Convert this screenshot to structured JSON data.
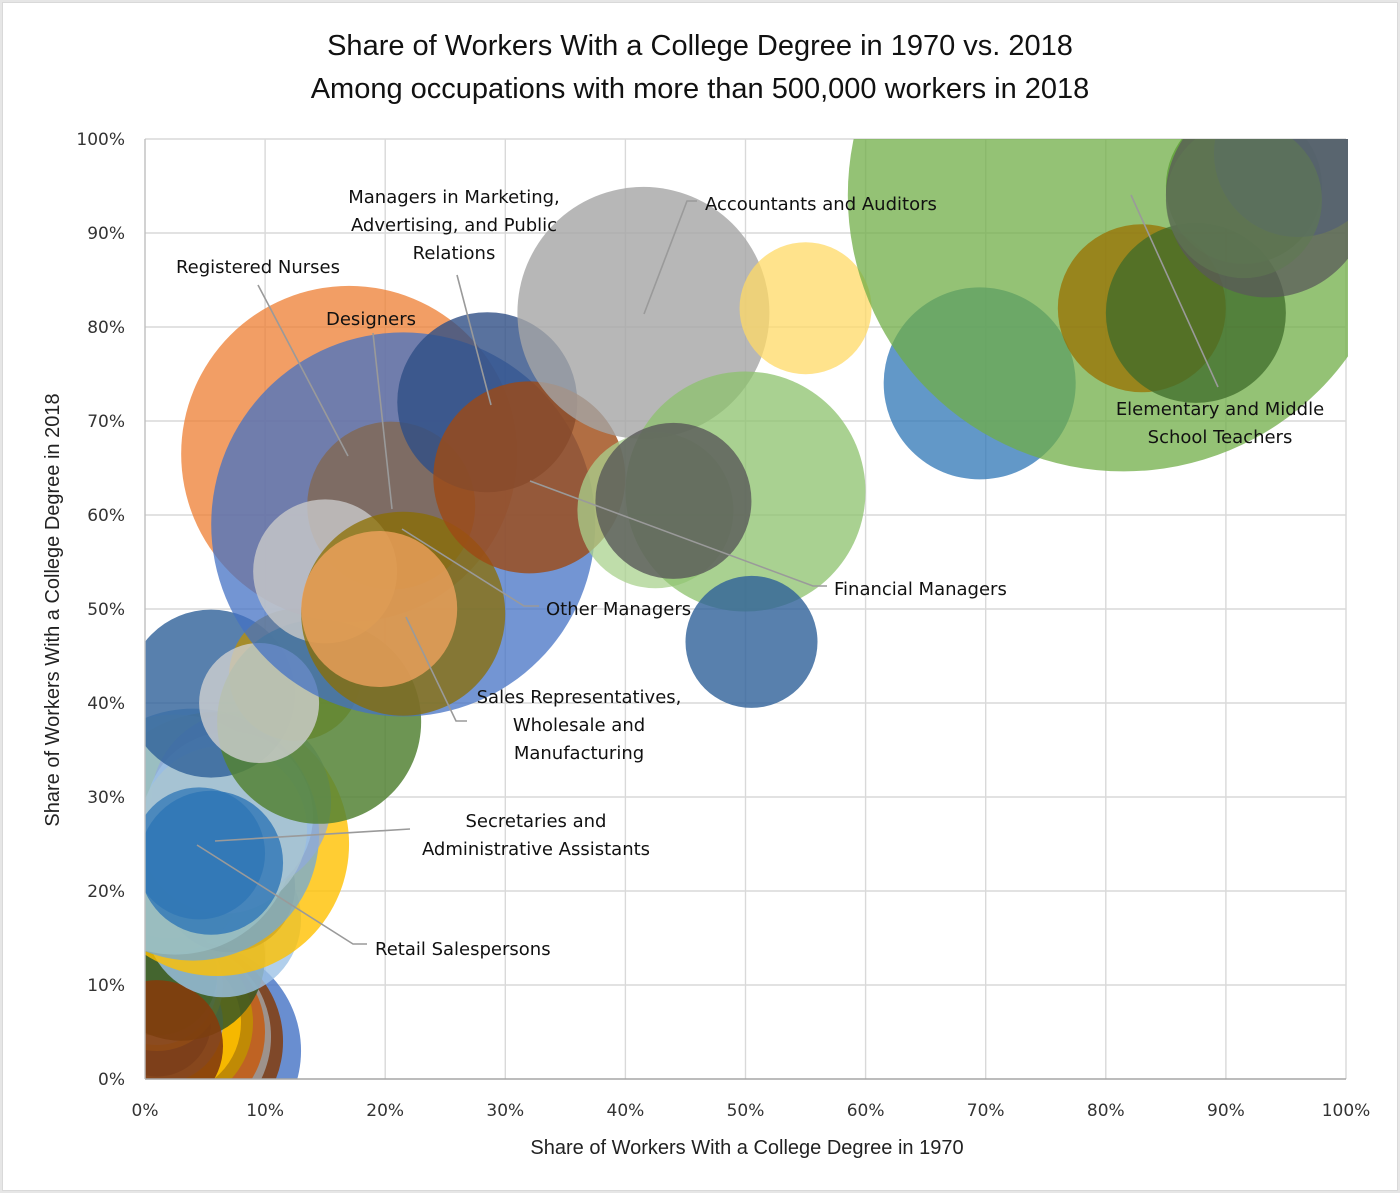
{
  "chart_data": {
    "type": "scatter",
    "subtype": "bubble",
    "title": "Share of Workers With a College Degree in 1970 vs. 2018",
    "subtitle": "Among occupations with more than 500,000 workers in 2018",
    "xlabel": "Share of Workers With a College Degree in 1970",
    "ylabel": "Share of Workers With a College Degree in 2018",
    "xlim": [
      0,
      100
    ],
    "ylim": [
      0,
      100
    ],
    "x_ticks": [
      "0%",
      "10%",
      "20%",
      "30%",
      "40%",
      "50%",
      "60%",
      "70%",
      "80%",
      "90%",
      "100%"
    ],
    "y_ticks": [
      "0%",
      "10%",
      "20%",
      "30%",
      "40%",
      "50%",
      "60%",
      "70%",
      "80%",
      "90%",
      "100%"
    ],
    "grid": true,
    "legend": "none",
    "size_unit": "relative bubble size (workers in 2018)",
    "points": [
      {
        "x": 4.0,
        "y": 3.0,
        "size": 9.0,
        "color": "#4472c4",
        "opacity": 0.8
      },
      {
        "x": 3.0,
        "y": 4.0,
        "size": 8.5,
        "color": "#843c0c",
        "opacity": 0.85
      },
      {
        "x": 2.5,
        "y": 4.5,
        "size": 8.0,
        "color": "#a5a5a5",
        "opacity": 0.8
      },
      {
        "x": 2.5,
        "y": 5.0,
        "size": 7.5,
        "color": "#c55a11",
        "opacity": 0.85
      },
      {
        "x": 2.0,
        "y": 6.0,
        "size": 7.0,
        "color": "#bf9000",
        "opacity": 0.85
      },
      {
        "x": 2.0,
        "y": 6.0,
        "size": 6.0,
        "color": "#ffc000",
        "opacity": 0.85
      },
      {
        "x": 1.5,
        "y": 6.0,
        "size": 5.0,
        "color": "#8faadc",
        "opacity": 0.85
      },
      {
        "x": 1.0,
        "y": 6.0,
        "size": 4.5,
        "color": "#2f5597",
        "opacity": 0.85
      },
      {
        "x": 1.0,
        "y": 10.0,
        "size": 5.5,
        "color": "#ffd966",
        "opacity": 0.8
      },
      {
        "x": 1.0,
        "y": 10.0,
        "size": 5.0,
        "color": "#c9d9e8",
        "opacity": 0.8
      },
      {
        "x": 1.0,
        "y": 11.0,
        "size": 5.0,
        "color": "#70ad47",
        "opacity": 0.7
      },
      {
        "x": 3.0,
        "y": 13.0,
        "size": 7.0,
        "color": "#375623",
        "opacity": 0.85
      },
      {
        "x": 1.0,
        "y": 3.5,
        "size": 5.5,
        "color": "#843c0c",
        "opacity": 0.9
      },
      {
        "x": 6.5,
        "y": 17.0,
        "size": 6.5,
        "color": "#9dc3e6",
        "opacity": 0.8
      },
      {
        "x": 2.0,
        "y": 21.0,
        "size": 6.0,
        "color": "#f4b183",
        "opacity": 0.8
      },
      {
        "x": 2.0,
        "y": 22.0,
        "size": 5.5,
        "color": "#ffd966",
        "opacity": 0.85
      },
      {
        "x": 7.0,
        "y": 20.5,
        "size": 5.5,
        "color": "#2f5597",
        "opacity": 0.85
      },
      {
        "x": 6.0,
        "y": 25.0,
        "size": 11.0,
        "color": "#ffc000",
        "opacity": 0.8
      },
      {
        "x": 4.0,
        "y": 26.0,
        "size": 10.5,
        "color": "#6fa8dc",
        "opacity": 0.75
      },
      {
        "x": 2.5,
        "y": 26.0,
        "size": 10.0,
        "color": "#9dc3c8",
        "opacity": 0.7
      },
      {
        "x": 8.0,
        "y": 29.5,
        "size": 7.5,
        "color": "#8faadc",
        "opacity": 0.75
      },
      {
        "x": 7.0,
        "y": 28.0,
        "size": 7.0,
        "color": "#9dc3e6",
        "opacity": 0.75
      },
      {
        "x": 6.5,
        "y": 26.5,
        "size": 7.0,
        "color": "#a9c4cf",
        "opacity": 0.8
      },
      {
        "x": 5.5,
        "y": 23.0,
        "size": 6.0,
        "color": "#2e75b6",
        "opacity": 0.8,
        "label": "Secretaries and Administrative Assistants"
      },
      {
        "x": 4.5,
        "y": 24.0,
        "size": 5.5,
        "color": "#2e75b6",
        "opacity": 0.75,
        "label": "Retail Salespersons"
      },
      {
        "x": 5.5,
        "y": 41.0,
        "size": 7.0,
        "color": "#2e6099",
        "opacity": 0.8
      },
      {
        "x": 12.5,
        "y": 43.0,
        "size": 5.5,
        "color": "#bf9000",
        "opacity": 0.75
      },
      {
        "x": 14.5,
        "y": 38.0,
        "size": 8.5,
        "color": "#548235",
        "opacity": 0.85
      },
      {
        "x": 9.5,
        "y": 40.0,
        "size": 5.0,
        "color": "#d0d0d0",
        "opacity": 0.8
      },
      {
        "x": 17.0,
        "y": 66.5,
        "size": 14.0,
        "color": "#ed7d31",
        "opacity": 0.75,
        "label": "Registered Nurses"
      },
      {
        "x": 21.5,
        "y": 59.0,
        "size": 16.0,
        "color": "#4472c4",
        "opacity": 0.75,
        "label": "Other Managers"
      },
      {
        "x": 20.5,
        "y": 61.0,
        "size": 7.0,
        "color": "#7f6a5c",
        "opacity": 0.9,
        "label": "Designers"
      },
      {
        "x": 15.0,
        "y": 54.0,
        "size": 6.0,
        "color": "#c9c9c9",
        "opacity": 0.8
      },
      {
        "x": 21.5,
        "y": 49.5,
        "size": 8.5,
        "color": "#8b6d00",
        "opacity": 0.75,
        "label": "Sales Representatives, Wholesale and Manufacturing"
      },
      {
        "x": 19.5,
        "y": 50.0,
        "size": 6.5,
        "color": "#f4a460",
        "opacity": 0.75
      },
      {
        "x": 28.5,
        "y": 72.0,
        "size": 7.5,
        "color": "#2f4f86",
        "opacity": 0.8,
        "label": "Managers in Marketing, Advertising, and Public Relations"
      },
      {
        "x": 32.0,
        "y": 64.0,
        "size": 8.0,
        "color": "#9e4a14",
        "opacity": 0.8,
        "label": "Financial Managers"
      },
      {
        "x": 41.5,
        "y": 81.5,
        "size": 10.5,
        "color": "#a5a5a5",
        "opacity": 0.8,
        "label": "Accountants and Auditors"
      },
      {
        "x": 55.0,
        "y": 82.0,
        "size": 5.5,
        "color": "#ffd966",
        "opacity": 0.75
      },
      {
        "x": 42.5,
        "y": 60.5,
        "size": 6.5,
        "color": "#a9d18e",
        "opacity": 0.75
      },
      {
        "x": 50.0,
        "y": 62.5,
        "size": 10.0,
        "color": "#8cc26c",
        "opacity": 0.75
      },
      {
        "x": 44.0,
        "y": 61.5,
        "size": 6.5,
        "color": "#595959",
        "opacity": 0.8
      },
      {
        "x": 50.5,
        "y": 46.5,
        "size": 5.5,
        "color": "#2e6099",
        "opacity": 0.8
      },
      {
        "x": 69.5,
        "y": 74.0,
        "size": 8.0,
        "color": "#2e75b6",
        "opacity": 0.75
      },
      {
        "x": 81.5,
        "y": 94.0,
        "size": 23.0,
        "color": "#70ad47",
        "opacity": 0.75,
        "label": "Elementary and Middle School Teachers"
      },
      {
        "x": 83.0,
        "y": 82.0,
        "size": 7.0,
        "color": "#9a7000",
        "opacity": 0.75
      },
      {
        "x": 87.5,
        "y": 81.5,
        "size": 7.5,
        "color": "#3e6b2a",
        "opacity": 0.75
      },
      {
        "x": 91.5,
        "y": 95.0,
        "size": 6.5,
        "color": "#5a9e32",
        "opacity": 0.75
      },
      {
        "x": 96.0,
        "y": 98.5,
        "size": 7.0,
        "color": "#4472c4",
        "opacity": 0.75
      },
      {
        "x": 93.5,
        "y": 94.0,
        "size": 8.5,
        "color": "#595959",
        "opacity": 0.75
      },
      {
        "x": 91.5,
        "y": 93.5,
        "size": 6.5,
        "color": "#5f7a52",
        "opacity": 0.6
      }
    ],
    "annotations": [
      {
        "lines": [
          "Registered Nurses"
        ],
        "target_index": 29
      },
      {
        "lines": [
          "Managers in Marketing,",
          "Advertising, and Public",
          "Relations"
        ],
        "target_index": 35
      },
      {
        "lines": [
          "Designers"
        ],
        "target_index": 31
      },
      {
        "lines": [
          "Accountants and Auditors"
        ],
        "target_index": 37
      },
      {
        "lines": [
          "Elementary and Middle",
          "School Teachers"
        ],
        "target_index": 44
      },
      {
        "lines": [
          "Financial Managers"
        ],
        "target_index": 36
      },
      {
        "lines": [
          "Other Managers"
        ],
        "target_index": 30
      },
      {
        "lines": [
          "Sales Representatives,",
          "Wholesale and",
          "Manufacturing"
        ],
        "target_index": 33
      },
      {
        "lines": [
          "Secretaries and",
          "Administrative Assistants"
        ],
        "target_index": 23
      },
      {
        "lines": [
          "Retail Salespersons"
        ],
        "target_index": 24
      }
    ]
  }
}
